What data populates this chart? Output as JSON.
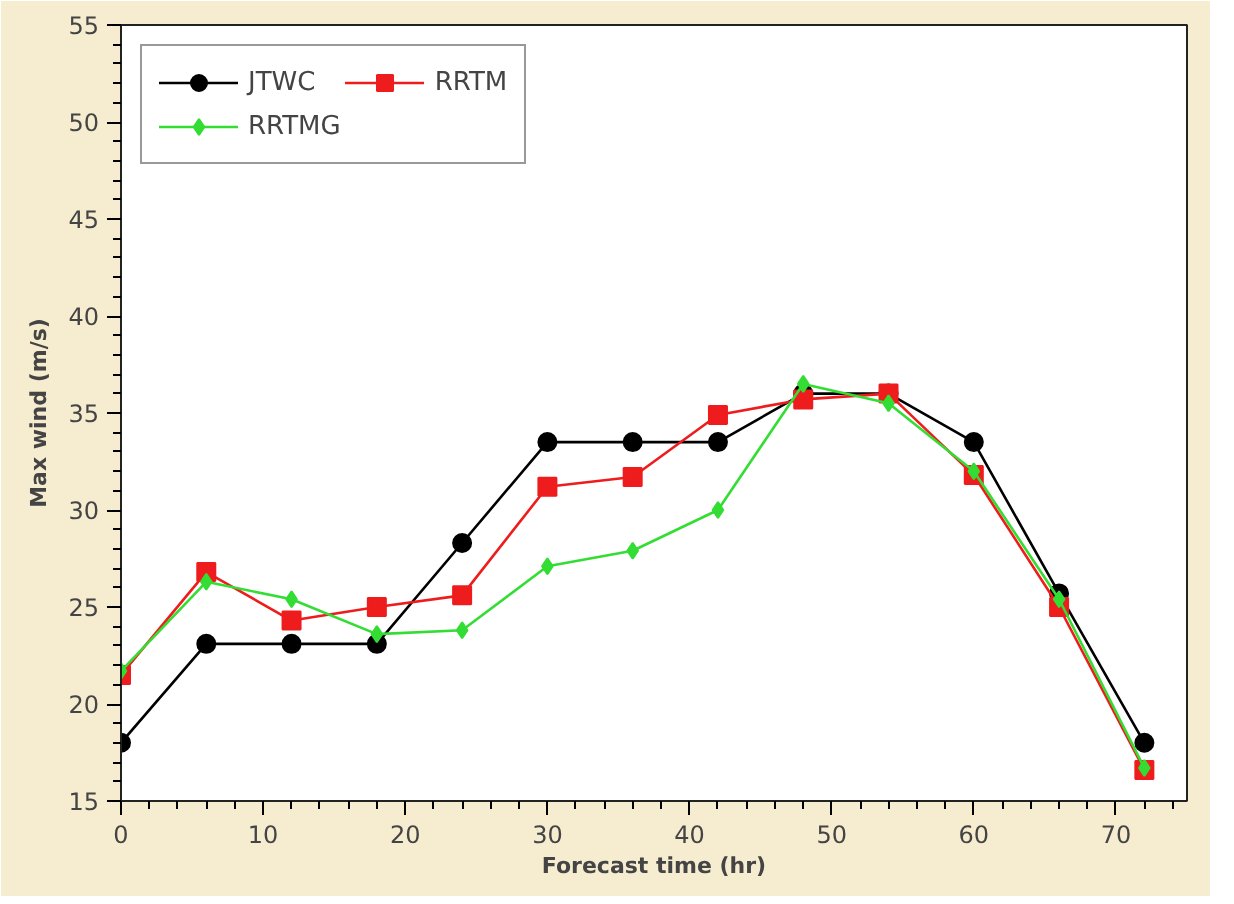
{
  "chart_data": {
    "type": "line",
    "xlabel": "Forecast time (hr)",
    "ylabel": "Max wind (m/s)",
    "x": [
      0,
      6,
      12,
      18,
      24,
      30,
      36,
      42,
      48,
      54,
      60,
      66,
      72
    ],
    "xlim": [
      0,
      75
    ],
    "xticks": [
      0,
      10,
      20,
      30,
      40,
      50,
      60,
      70
    ],
    "ylim": [
      15,
      55
    ],
    "yticks": [
      15,
      20,
      25,
      30,
      35,
      40,
      45,
      50,
      55
    ],
    "grid": false,
    "legend": "top left",
    "line_style": "solid",
    "series": [
      {
        "name": "JTWC",
        "color": "#000000",
        "marker": "circle",
        "values": [
          18.0,
          23.1,
          23.1,
          23.1,
          28.3,
          33.5,
          33.5,
          33.5,
          36.0,
          36.0,
          33.5,
          25.7,
          18.0
        ]
      },
      {
        "name": "RRTM",
        "color": "#ee1c1c",
        "marker": "square",
        "values": [
          21.5,
          26.8,
          24.3,
          25.0,
          25.6,
          31.2,
          31.7,
          34.9,
          35.7,
          36.0,
          31.8,
          25.0,
          16.6
        ]
      },
      {
        "name": "RRTMG",
        "color": "#33dd33",
        "marker": "diamond",
        "values": [
          21.7,
          26.3,
          25.4,
          23.6,
          23.8,
          27.1,
          27.9,
          30.0,
          36.5,
          35.5,
          32.0,
          25.4,
          16.7
        ]
      }
    ]
  }
}
